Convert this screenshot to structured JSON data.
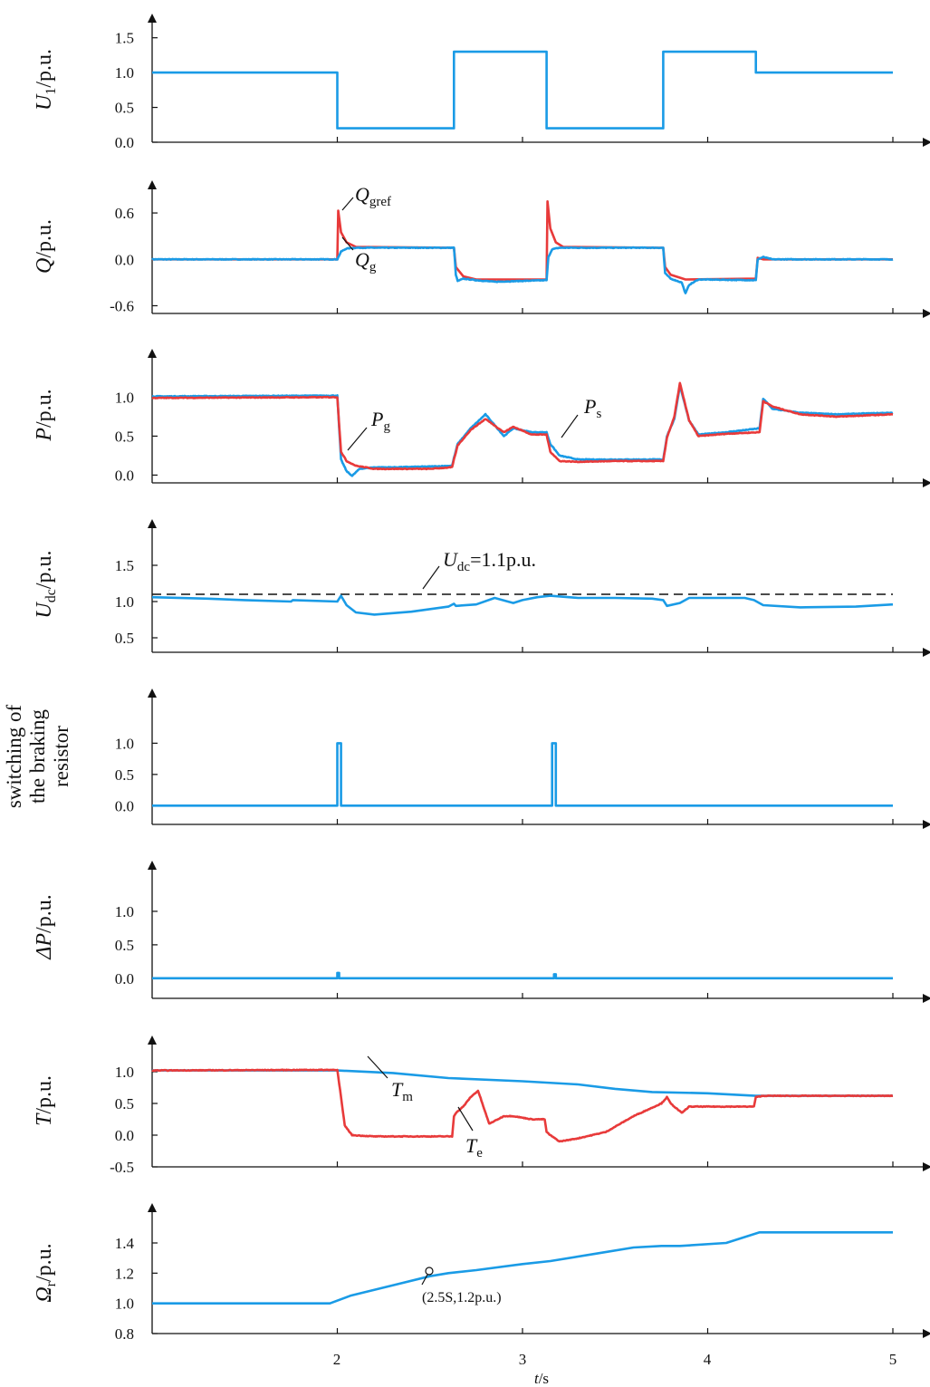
{
  "colors": {
    "blue": "#1a9be6",
    "red": "#e83a3a",
    "axis": "#111111"
  },
  "x_axis": {
    "label_italic": "t",
    "label_rest": "/s",
    "ticks": [
      2,
      3,
      4,
      5
    ],
    "tick_labels": [
      "2",
      "3",
      "4",
      "5"
    ],
    "range": [
      1,
      5
    ]
  },
  "chart_data": [
    {
      "id": "U1",
      "type": "line",
      "ylabel": {
        "main": "U",
        "sub": "1",
        "rest": "/p.u."
      },
      "ylim": [
        0,
        1.6
      ],
      "yticks": [
        0,
        0.5,
        1.0,
        1.5
      ],
      "ytick_labels": [
        "0.0",
        "0.5",
        "1.0",
        "1.5"
      ],
      "series": [
        {
          "color": "blue",
          "kind": "step",
          "x": [
            1,
            2,
            2,
            2.63,
            2.63,
            3.13,
            3.13,
            3.76,
            3.76,
            4.26,
            4.26,
            5
          ],
          "y": [
            1.0,
            1.0,
            0.2,
            0.2,
            1.3,
            1.3,
            0.2,
            0.2,
            1.3,
            1.3,
            1.0,
            1.0
          ]
        }
      ]
    },
    {
      "id": "Q",
      "type": "line",
      "ylabel": {
        "main": "Q",
        "sub": "",
        "rest": "/p.u."
      },
      "ylim": [
        -0.7,
        0.8
      ],
      "yticks": [
        -0.6,
        0.0,
        0.6
      ],
      "ytick_labels": [
        "-0.6",
        "0.0",
        "0.6"
      ],
      "annotations": [
        {
          "main": "Q",
          "sub": "gref"
        },
        {
          "main": "Q",
          "sub": "g"
        }
      ],
      "series": [
        {
          "color": "red",
          "kind": "line",
          "x": [
            1,
            2,
            2.005,
            2.02,
            2.05,
            2.1,
            2.63,
            2.64,
            2.68,
            2.75,
            3.13,
            3.135,
            3.15,
            3.18,
            3.22,
            3.76,
            3.77,
            3.8,
            3.88,
            4.26,
            4.27,
            4.3,
            5
          ],
          "y": [
            0,
            0,
            0.63,
            0.35,
            0.22,
            0.16,
            0.15,
            -0.1,
            -0.22,
            -0.26,
            -0.26,
            0.75,
            0.4,
            0.22,
            0.16,
            0.15,
            -0.1,
            -0.2,
            -0.26,
            -0.25,
            0.02,
            0.0,
            0
          ]
        },
        {
          "color": "blue",
          "kind": "noisy",
          "x": [
            1,
            2,
            2.02,
            2.05,
            2.1,
            2.63,
            2.64,
            2.65,
            2.68,
            2.75,
            2.85,
            3.13,
            3.14,
            3.16,
            3.2,
            3.76,
            3.77,
            3.8,
            3.86,
            3.88,
            3.9,
            3.95,
            4.26,
            4.27,
            4.3,
            4.35,
            5
          ],
          "y": [
            0,
            0,
            0.1,
            0.14,
            0.15,
            0.15,
            -0.2,
            -0.28,
            -0.25,
            -0.27,
            -0.29,
            -0.27,
            0.03,
            0.13,
            0.15,
            0.15,
            -0.18,
            -0.25,
            -0.3,
            -0.44,
            -0.33,
            -0.26,
            -0.27,
            0.0,
            0.03,
            0.0,
            0
          ]
        }
      ]
    },
    {
      "id": "P",
      "type": "line",
      "ylabel": {
        "main": "P",
        "sub": "",
        "rest": "/p.u."
      },
      "ylim": [
        -0.1,
        1.4
      ],
      "yticks": [
        0.0,
        0.5,
        1.0
      ],
      "ytick_labels": [
        "0.0",
        "0.5",
        "1.0"
      ],
      "annotations": [
        {
          "main": "P",
          "sub": "g"
        },
        {
          "main": "P",
          "sub": "s"
        }
      ],
      "series": [
        {
          "color": "blue",
          "kind": "noisy",
          "x": [
            1,
            2,
            2.02,
            2.05,
            2.08,
            2.12,
            2.2,
            2.3,
            2.5,
            2.62,
            2.63,
            2.65,
            2.72,
            2.8,
            2.9,
            2.95,
            3.05,
            3.13,
            3.15,
            3.2,
            3.3,
            3.5,
            3.76,
            3.78,
            3.82,
            3.85,
            3.9,
            3.95,
            4.1,
            4.28,
            4.3,
            4.35,
            4.5,
            4.7,
            5
          ],
          "y": [
            1.01,
            1.02,
            0.2,
            0.05,
            -0.01,
            0.08,
            0.1,
            0.1,
            0.11,
            0.12,
            0.22,
            0.4,
            0.6,
            0.78,
            0.5,
            0.6,
            0.55,
            0.55,
            0.4,
            0.25,
            0.2,
            0.2,
            0.2,
            0.5,
            0.72,
            1.15,
            0.7,
            0.52,
            0.55,
            0.6,
            0.98,
            0.85,
            0.8,
            0.78,
            0.8
          ]
        },
        {
          "color": "red",
          "kind": "noisy",
          "x": [
            1,
            2,
            2.02,
            2.05,
            2.1,
            2.2,
            2.5,
            2.62,
            2.63,
            2.65,
            2.72,
            2.8,
            2.9,
            2.95,
            3.05,
            3.13,
            3.15,
            3.2,
            3.3,
            3.5,
            3.76,
            3.78,
            3.82,
            3.85,
            3.9,
            3.95,
            4.1,
            4.28,
            4.3,
            4.35,
            4.5,
            4.7,
            5
          ],
          "y": [
            0.99,
            1.0,
            0.3,
            0.18,
            0.12,
            0.08,
            0.08,
            0.1,
            0.2,
            0.38,
            0.58,
            0.72,
            0.55,
            0.62,
            0.52,
            0.52,
            0.3,
            0.18,
            0.17,
            0.18,
            0.18,
            0.48,
            0.75,
            1.18,
            0.7,
            0.5,
            0.53,
            0.55,
            0.95,
            0.88,
            0.78,
            0.75,
            0.78
          ]
        }
      ]
    },
    {
      "id": "Udc",
      "type": "line",
      "ylabel": {
        "main": "U",
        "sub": "dc",
        "rest": "/p.u."
      },
      "ylim": [
        0.3,
        1.9
      ],
      "yticks": [
        0.5,
        1.0,
        1.5
      ],
      "ytick_labels": [
        "0.5",
        "1.0",
        "1.5"
      ],
      "annotations": [
        {
          "main": "U",
          "sub": "dc",
          "rest": "=1.1p.u."
        }
      ],
      "reference_line": {
        "y": 1.1,
        "style": "dashed"
      },
      "series": [
        {
          "color": "blue",
          "kind": "line",
          "x": [
            1,
            1.3,
            1.5,
            1.75,
            1.76,
            2,
            2.02,
            2.05,
            2.1,
            2.2,
            2.4,
            2.6,
            2.63,
            2.64,
            2.75,
            2.85,
            2.95,
            3.0,
            3.08,
            3.15,
            3.3,
            3.5,
            3.7,
            3.76,
            3.78,
            3.85,
            3.9,
            4.0,
            4.2,
            4.25,
            4.3,
            4.5,
            4.8,
            5
          ],
          "y": [
            1.06,
            1.04,
            1.02,
            1.0,
            1.02,
            1.0,
            1.08,
            0.95,
            0.85,
            0.82,
            0.86,
            0.93,
            0.97,
            0.94,
            0.96,
            1.05,
            0.98,
            1.02,
            1.06,
            1.08,
            1.05,
            1.05,
            1.04,
            1.02,
            0.94,
            0.98,
            1.05,
            1.05,
            1.05,
            1.02,
            0.95,
            0.92,
            0.93,
            0.96
          ]
        }
      ]
    },
    {
      "id": "brake",
      "type": "line",
      "ylabel": {
        "lines": [
          "switching of",
          "the braking",
          "resistor"
        ]
      },
      "ylim": [
        -0.3,
        1.6
      ],
      "yticks": [
        0.0,
        0.5,
        1.0
      ],
      "ytick_labels": [
        "0.0",
        "0.5",
        "1.0"
      ],
      "series": [
        {
          "color": "blue",
          "kind": "line",
          "x": [
            1,
            2.0,
            2.0,
            2.02,
            2.02,
            3.16,
            3.16,
            3.18,
            3.18,
            5
          ],
          "y": [
            0,
            0,
            1.0,
            1.0,
            0,
            0,
            1.0,
            1.0,
            0,
            0
          ]
        }
      ]
    },
    {
      "id": "dP",
      "type": "line",
      "ylabel": {
        "main": "ΔP",
        "sub": "",
        "rest": "/p.u."
      },
      "ylim": [
        -0.3,
        1.5
      ],
      "yticks": [
        0.0,
        0.5,
        1.0
      ],
      "ytick_labels": [
        "0.0",
        "0.5",
        "1.0"
      ],
      "series": [
        {
          "color": "blue",
          "kind": "line",
          "x": [
            1,
            2.0,
            2.0,
            2.01,
            2.01,
            3.17,
            3.17,
            3.18,
            3.18,
            5
          ],
          "y": [
            0,
            0,
            0.08,
            0.08,
            0,
            0,
            0.06,
            0.06,
            0,
            0
          ]
        }
      ]
    },
    {
      "id": "T",
      "type": "line",
      "ylabel": {
        "main": "T",
        "sub": "",
        "rest": "/p.u."
      },
      "ylim": [
        -0.5,
        1.3
      ],
      "yticks": [
        -0.5,
        0.0,
        0.5,
        1.0
      ],
      "ytick_labels": [
        "-0.5",
        "0.0",
        "0.5",
        "1.0"
      ],
      "annotations": [
        {
          "main": "T",
          "sub": "m"
        },
        {
          "main": "T",
          "sub": "e"
        }
      ],
      "series": [
        {
          "color": "blue",
          "kind": "line",
          "x": [
            1,
            2,
            2.3,
            2.6,
            3.0,
            3.3,
            3.5,
            3.7,
            4.0,
            4.26,
            5
          ],
          "y": [
            1.02,
            1.02,
            0.98,
            0.9,
            0.85,
            0.8,
            0.73,
            0.68,
            0.66,
            0.62,
            0.62
          ]
        },
        {
          "color": "red",
          "kind": "noisy",
          "x": [
            1,
            2,
            2.02,
            2.04,
            2.08,
            2.2,
            2.4,
            2.62,
            2.63,
            2.64,
            2.68,
            2.72,
            2.76,
            2.82,
            2.9,
            2.95,
            3.05,
            3.12,
            3.13,
            3.15,
            3.2,
            3.3,
            3.45,
            3.6,
            3.75,
            3.78,
            3.8,
            3.86,
            3.9,
            4.0,
            4.1,
            4.25,
            4.26,
            4.3,
            5
          ],
          "y": [
            1.02,
            1.03,
            0.6,
            0.15,
            0.0,
            -0.02,
            -0.02,
            -0.02,
            0.3,
            0.35,
            0.45,
            0.6,
            0.7,
            0.18,
            0.3,
            0.3,
            0.25,
            0.25,
            0.05,
            0.0,
            -0.1,
            -0.05,
            0.05,
            0.3,
            0.5,
            0.6,
            0.5,
            0.35,
            0.45,
            0.45,
            0.45,
            0.45,
            0.6,
            0.62,
            0.62
          ]
        }
      ]
    },
    {
      "id": "Omega",
      "type": "line",
      "ylabel": {
        "main": "Ω",
        "sub": "r",
        "rest": "/p.u."
      },
      "ylim": [
        0.8,
        1.55
      ],
      "yticks": [
        0.8,
        1.0,
        1.2,
        1.4
      ],
      "ytick_labels": [
        "0.8",
        "1.0",
        "1.2",
        "1.4"
      ],
      "annotations": [
        {
          "text": "(2.5S,1.2p.u.)",
          "x": 2.5,
          "y": 1.18
        }
      ],
      "series": [
        {
          "color": "blue",
          "kind": "line",
          "x": [
            1,
            1.96,
            2.07,
            2.3,
            2.5,
            2.6,
            2.75,
            3.0,
            3.15,
            3.4,
            3.6,
            3.75,
            3.85,
            4.1,
            4.28,
            5
          ],
          "y": [
            1.0,
            1.0,
            1.05,
            1.12,
            1.18,
            1.2,
            1.22,
            1.26,
            1.28,
            1.33,
            1.37,
            1.38,
            1.38,
            1.4,
            1.47,
            1.47
          ]
        }
      ]
    }
  ]
}
